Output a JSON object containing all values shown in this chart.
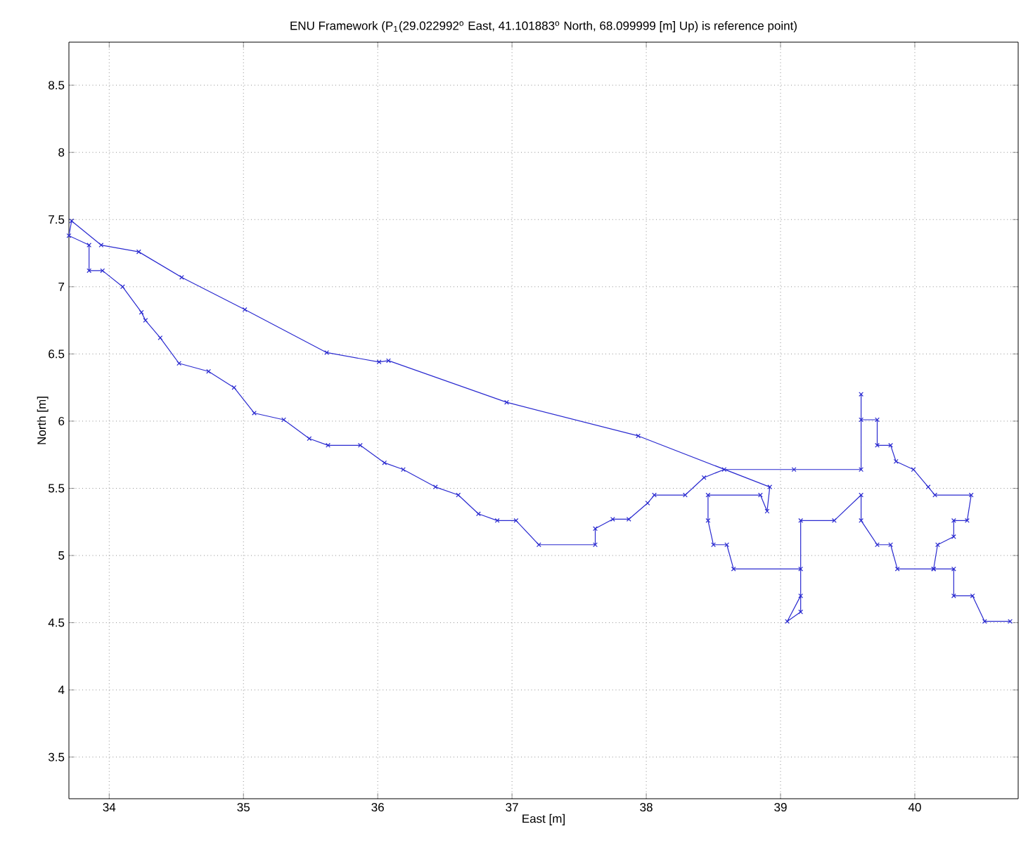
{
  "chart_data": {
    "type": "line",
    "title": "ENU Framework (P$_{1}$(29.022992$^{o}$ East, 41.101883$^{o}$ North, 68.099999 [m] Up) is reference point)",
    "xlabel": "East [m]",
    "ylabel": "North [m]",
    "xlim": [
      33.7,
      40.77
    ],
    "ylim": [
      3.19,
      8.82
    ],
    "xticks": [
      34,
      35,
      36,
      37,
      38,
      39,
      40
    ],
    "yticks": [
      3.5,
      4,
      4.5,
      5,
      5.5,
      6,
      6.5,
      7,
      7.5,
      8,
      8.5
    ],
    "grid": true,
    "marker": "cross",
    "line_style": "solid",
    "series": [
      {
        "color": "#2a2ad0",
        "x": [
          40.14,
          39.87,
          39.82,
          39.72,
          39.6,
          39.6,
          39.4,
          39.15,
          39.15,
          39.05,
          39.15,
          39.15,
          38.65,
          38.6,
          38.5,
          38.46,
          38.46,
          38.85,
          38.9,
          38.92,
          37.94,
          36.96,
          36.08,
          36.01,
          35.62,
          35.01,
          34.54,
          34.22,
          33.94,
          33.72,
          33.7,
          33.85,
          33.85,
          33.95,
          34.1,
          34.24,
          34.27,
          34.38,
          34.52,
          34.74,
          34.93,
          35.08,
          35.3,
          35.49,
          35.63,
          35.87,
          36.05,
          36.19,
          36.43,
          36.6,
          36.75,
          36.89,
          37.03,
          37.2,
          37.62,
          37.62,
          37.75,
          37.87,
          38.01,
          38.06,
          38.29,
          38.43,
          38.58,
          39.1,
          39.6,
          39.6,
          39.6,
          39.72,
          39.72,
          39.82,
          39.86,
          39.99,
          40.1,
          40.15,
          40.42,
          40.39,
          40.29,
          40.29,
          40.17,
          40.14,
          40.29,
          40.29,
          40.43,
          40.52,
          40.71
        ],
        "values": [
          4.9,
          4.9,
          5.08,
          5.08,
          5.26,
          5.45,
          5.26,
          5.26,
          4.7,
          4.51,
          4.58,
          4.9,
          4.9,
          5.08,
          5.08,
          5.26,
          5.45,
          5.45,
          5.33,
          5.51,
          5.89,
          6.14,
          6.45,
          6.44,
          6.51,
          6.83,
          7.07,
          7.26,
          7.31,
          7.49,
          7.38,
          7.31,
          7.12,
          7.12,
          7.0,
          6.81,
          6.75,
          6.62,
          6.43,
          6.37,
          6.25,
          6.06,
          6.01,
          5.87,
          5.82,
          5.82,
          5.69,
          5.64,
          5.51,
          5.45,
          5.31,
          5.26,
          5.26,
          5.08,
          5.08,
          5.2,
          5.27,
          5.27,
          5.39,
          5.45,
          5.45,
          5.58,
          5.64,
          5.64,
          5.64,
          6.2,
          6.01,
          6.01,
          5.82,
          5.82,
          5.7,
          5.64,
          5.51,
          5.45,
          5.45,
          5.26,
          5.26,
          5.14,
          5.08,
          4.9,
          4.9,
          4.7,
          4.7,
          4.51,
          4.51
        ]
      }
    ]
  }
}
